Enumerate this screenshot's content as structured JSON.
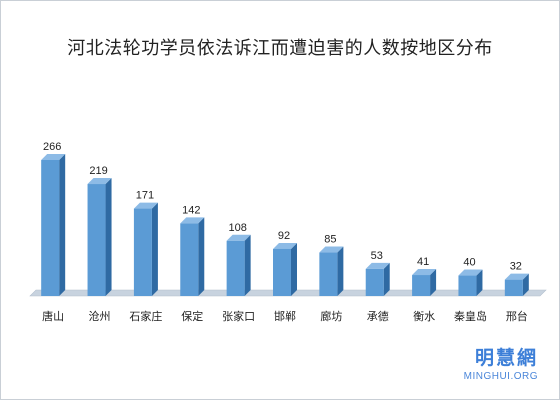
{
  "chart_data": {
    "type": "bar",
    "title": "河北法轮功学员依法诉江而遭迫害的人数按地区分布",
    "categories": [
      "唐山",
      "沧州",
      "石家庄",
      "保定",
      "张家口",
      "邯郸",
      "廊坊",
      "承德",
      "衡水",
      "秦皇岛",
      "邢台"
    ],
    "values": [
      266,
      219,
      171,
      142,
      108,
      92,
      85,
      53,
      41,
      40,
      32
    ],
    "ylim": [
      0,
      266
    ],
    "grid": false,
    "legend": "none",
    "data_labels": true,
    "style": "3d-column"
  },
  "colors": {
    "bar_front": "#5b9bd5",
    "bar_side": "#2f6aa3",
    "bar_top": "#8dbbe6",
    "floor": "#c8d3df"
  },
  "watermark": {
    "chinese": "明慧網",
    "english": "MINGHUI.ORG"
  }
}
